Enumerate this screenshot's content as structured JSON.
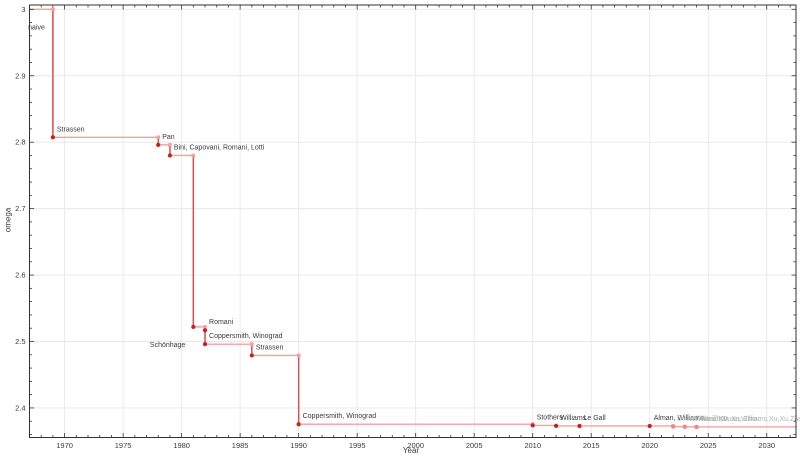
{
  "chart_data": {
    "type": "line",
    "subtype": "step-post-timeline",
    "title": "",
    "xlabel": "Year",
    "ylabel": "omega",
    "xlim": [
      1967,
      2032.5
    ],
    "ylim": [
      2.3555,
      3.0065
    ],
    "grid": true,
    "legend": "none",
    "x_major_ticks": [
      1970,
      1975,
      1980,
      1985,
      1990,
      1995,
      2000,
      2005,
      2010,
      2015,
      2020,
      2025,
      2030
    ],
    "x_minor_step": 1,
    "y_major_ticks": [
      {
        "v": 2.4,
        "label": "2.4"
      },
      {
        "v": 2.5,
        "label": "2.5"
      },
      {
        "v": 2.6,
        "label": "2.6"
      },
      {
        "v": 2.7,
        "label": "2.7"
      },
      {
        "v": 2.8,
        "label": "2.8"
      },
      {
        "v": 2.9,
        "label": "2.9"
      },
      {
        "v": 3.0,
        "label": "3"
      }
    ],
    "y_minor_step": 0.02,
    "baseline": {
      "label": "naive",
      "omega": 3,
      "start_year": 1969
    },
    "points": [
      {
        "year": 1969,
        "omega": 2.8074,
        "label": "Strassen",
        "provisional": false,
        "label_side": "above"
      },
      {
        "year": 1978,
        "omega": 2.796,
        "label": "Pan",
        "provisional": false,
        "label_side": "above"
      },
      {
        "year": 1979,
        "omega": 2.78,
        "label": "Bini, Capovani, Romani, Lotti",
        "provisional": false,
        "label_side": "above"
      },
      {
        "year": 1981,
        "omega": 2.522,
        "label": "Schönhage",
        "provisional": false,
        "label_side": "below"
      },
      {
        "year": 1982,
        "omega": 2.517,
        "label": "Romani",
        "provisional": false,
        "label_side": "above"
      },
      {
        "year": 1982,
        "omega": 2.496,
        "label": "Coppersmith, Winograd",
        "provisional": false,
        "label_side": "above"
      },
      {
        "year": 1986,
        "omega": 2.479,
        "label": "Strassen",
        "provisional": false,
        "label_side": "above"
      },
      {
        "year": 1990,
        "omega": 2.3755,
        "label": "Coppersmith, Winograd",
        "provisional": false,
        "label_side": "above"
      },
      {
        "year": 2010,
        "omega": 2.3737,
        "label": "Stothers",
        "provisional": false,
        "label_side": "above"
      },
      {
        "year": 2012,
        "omega": 2.3729,
        "label": "Williams",
        "provisional": false,
        "label_side": "above"
      },
      {
        "year": 2014,
        "omega": 2.3728639,
        "label": "Le Gall",
        "provisional": false,
        "label_side": "above"
      },
      {
        "year": 2020,
        "omega": 2.3728596,
        "label": "Alman, Williams",
        "provisional": false,
        "label_side": "above"
      },
      {
        "year": 2022,
        "omega": 2.371866,
        "label": "Duan, Wu, Zhou",
        "provisional": true,
        "label_side": "above"
      },
      {
        "year": 2023,
        "omega": 2.371552,
        "label": "Williams, Xu, Xu, Zhou",
        "provisional": true,
        "label_side": "above"
      },
      {
        "year": 2024,
        "omega": 2.371339,
        "label": "Alman,Duan,Williams,Xu,Xu,Zhou",
        "provisional": true,
        "label_side": "above"
      }
    ],
    "colors": {
      "step_line": "#f5a0a0",
      "drop_line": "#e04b4b",
      "point": "#c42222",
      "provisional_point": "#f08585",
      "corner_marker": "#f5a0a0",
      "grid": "#e8e8e8",
      "axis": "#333333",
      "tick_label": "#3a3a3a",
      "annotation": "#3a3a3a",
      "provisional_annotation": "#b3b3b3",
      "background": "#ffffff"
    }
  }
}
